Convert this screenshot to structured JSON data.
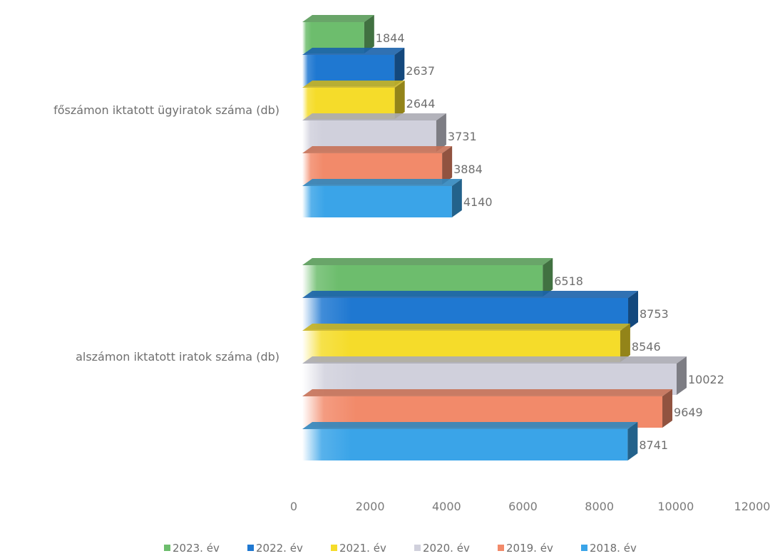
{
  "chart_data": {
    "type": "bar",
    "orientation": "horizontal",
    "three_d": true,
    "categories": [
      "főszámon iktatott ügyiratok száma (db)",
      "alszámon iktatott iratok száma (db)"
    ],
    "series": [
      {
        "name": "2023. év",
        "color": "#6dbd6d",
        "values": [
          1844,
          6518
        ]
      },
      {
        "name": "2022. év",
        "color": "#1f78d1",
        "values": [
          2637,
          8753
        ]
      },
      {
        "name": "2021. év",
        "color": "#f5dc2a",
        "values": [
          2644,
          8546
        ]
      },
      {
        "name": "2020. év",
        "color": "#d0d0dc",
        "values": [
          3731,
          10022
        ]
      },
      {
        "name": "2019. év",
        "color": "#f28a6a",
        "values": [
          3884,
          9649
        ]
      },
      {
        "name": "2018. év",
        "color": "#3aa4e8",
        "values": [
          4140,
          8741
        ]
      }
    ],
    "x_ticks": [
      "0",
      "2000",
      "4000",
      "6000",
      "8000",
      "10000",
      "12000"
    ],
    "xlim": [
      0,
      12000
    ],
    "grid": false,
    "legend_position": "bottom"
  }
}
